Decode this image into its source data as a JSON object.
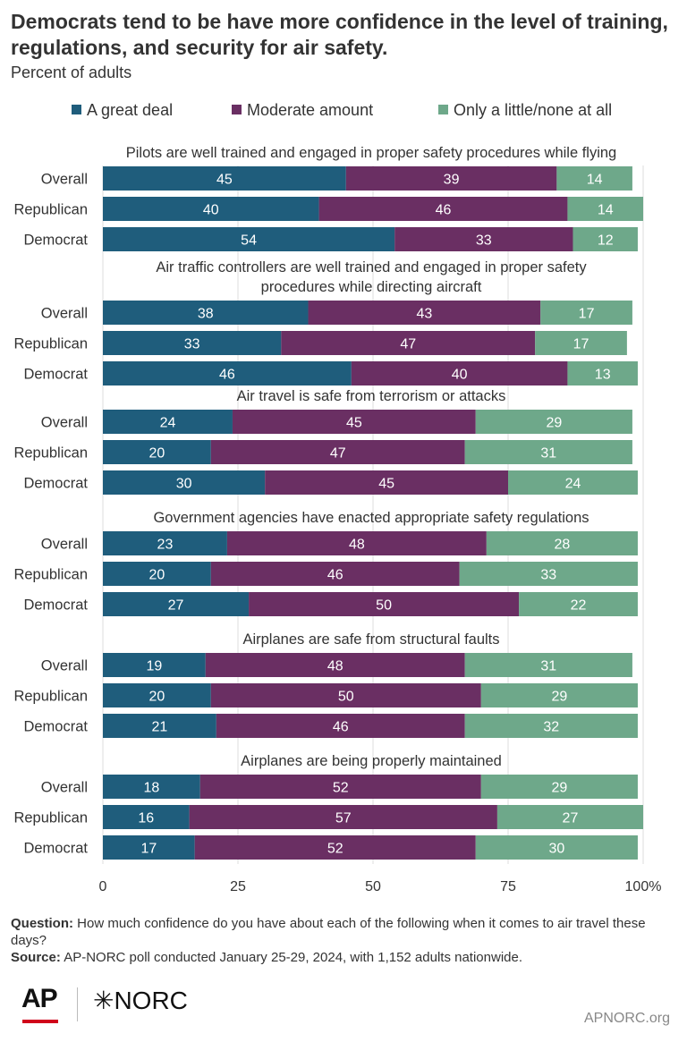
{
  "title": "Democrats tend to be have more confidence in the level of training, regulations, and security for air safety.",
  "subtitle": "Percent of adults",
  "legend": [
    {
      "label": "A great deal",
      "color": "#1f5d7c"
    },
    {
      "label": "Moderate amount",
      "color": "#6a2f63"
    },
    {
      "label": "Only a little/none at all",
      "color": "#6ea88a"
    }
  ],
  "chart_data": {
    "type": "bar",
    "orientation": "horizontal",
    "stacked": true,
    "xlim": [
      0,
      100
    ],
    "x_ticks": [
      "0",
      "25",
      "50",
      "75",
      "100%"
    ],
    "series_names": [
      "A great deal",
      "Moderate amount",
      "Only a little/none at all"
    ],
    "groups": [
      {
        "title": "Pilots are well trained and engaged in proper safety procedures while flying",
        "rows": [
          {
            "label": "Overall",
            "values": [
              45,
              39,
              14
            ]
          },
          {
            "label": "Republican",
            "values": [
              40,
              46,
              14
            ]
          },
          {
            "label": "Democrat",
            "values": [
              54,
              33,
              12
            ]
          }
        ]
      },
      {
        "title": "Air traffic controllers are well trained and engaged in proper safety procedures while directing aircraft",
        "title_lines": [
          "Air traffic controllers are well trained and engaged in proper safety",
          "procedures while directing aircraft"
        ],
        "rows": [
          {
            "label": "Overall",
            "values": [
              38,
              43,
              17
            ]
          },
          {
            "label": "Republican",
            "values": [
              33,
              47,
              17
            ]
          },
          {
            "label": "Democrat",
            "values": [
              46,
              40,
              13
            ]
          }
        ]
      },
      {
        "title": "Air travel is safe from terrorism or attacks",
        "rows": [
          {
            "label": "Overall",
            "values": [
              24,
              45,
              29
            ]
          },
          {
            "label": "Republican",
            "values": [
              20,
              47,
              31
            ]
          },
          {
            "label": "Democrat",
            "values": [
              30,
              45,
              24
            ]
          }
        ]
      },
      {
        "title": "Government agencies have enacted appropriate safety regulations",
        "rows": [
          {
            "label": "Overall",
            "values": [
              23,
              48,
              28
            ]
          },
          {
            "label": "Republican",
            "values": [
              20,
              46,
              33
            ]
          },
          {
            "label": "Democrat",
            "values": [
              27,
              50,
              22
            ]
          }
        ]
      },
      {
        "title": "Airplanes are safe from structural faults",
        "rows": [
          {
            "label": "Overall",
            "values": [
              19,
              48,
              31
            ]
          },
          {
            "label": "Republican",
            "values": [
              20,
              50,
              29
            ]
          },
          {
            "label": "Democrat",
            "values": [
              21,
              46,
              32
            ]
          }
        ]
      },
      {
        "title": "Airplanes are being properly maintained",
        "rows": [
          {
            "label": "Overall",
            "values": [
              18,
              52,
              29
            ]
          },
          {
            "label": "Republican",
            "values": [
              16,
              57,
              27
            ]
          },
          {
            "label": "Democrat",
            "values": [
              17,
              52,
              30
            ]
          }
        ]
      }
    ]
  },
  "footer": {
    "question_label": "Question:",
    "question_text": "How much confidence do you have about each of the following when it comes to air travel these days?",
    "source_label": "Source:",
    "source_text": "AP-NORC poll conducted January 25-29, 2024, with 1,152 adults nationwide."
  },
  "logos": {
    "ap": "AP",
    "norc": "✳NORC"
  },
  "site": "APNORC.org"
}
